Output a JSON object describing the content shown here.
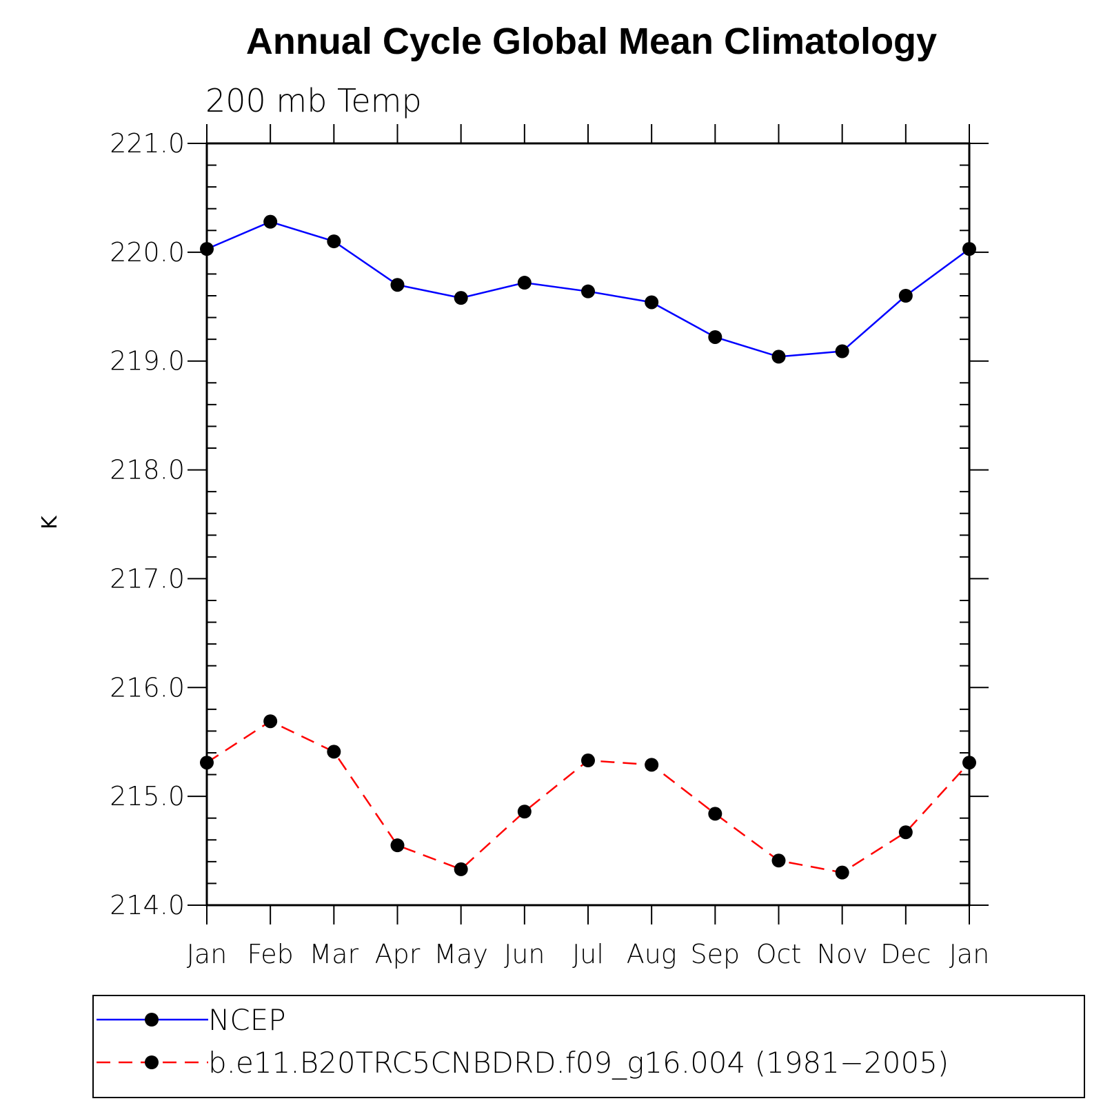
{
  "chart_data": {
    "type": "line",
    "title": "Annual Cycle Global Mean Climatology",
    "subtitle": "200 mb Temp",
    "xlabel": "",
    "ylabel": "K",
    "categories": [
      "Jan",
      "Feb",
      "Mar",
      "Apr",
      "May",
      "Jun",
      "Jul",
      "Aug",
      "Sep",
      "Oct",
      "Nov",
      "Dec",
      "Jan"
    ],
    "ylim": [
      214.0,
      221.0
    ],
    "yticks": [
      "214.0",
      "215.0",
      "216.0",
      "217.0",
      "218.0",
      "219.0",
      "220.0",
      "221.0"
    ],
    "grid": false,
    "legend_position": "bottom",
    "series": [
      {
        "name": "NCEP",
        "color": "#0000ff",
        "dashed": false,
        "values": [
          220.03,
          220.28,
          220.1,
          219.7,
          219.58,
          219.72,
          219.64,
          219.54,
          219.22,
          219.04,
          219.09,
          219.6,
          220.03
        ]
      },
      {
        "name": "b.e11.B20TRC5CNBDRD.f09_g16.004 (1981−2005)",
        "color": "#ff0000",
        "dashed": true,
        "values": [
          215.31,
          215.69,
          215.41,
          214.55,
          214.33,
          214.86,
          215.33,
          215.29,
          214.84,
          214.41,
          214.3,
          214.67,
          215.31
        ]
      }
    ],
    "marker_color": "#000000"
  }
}
